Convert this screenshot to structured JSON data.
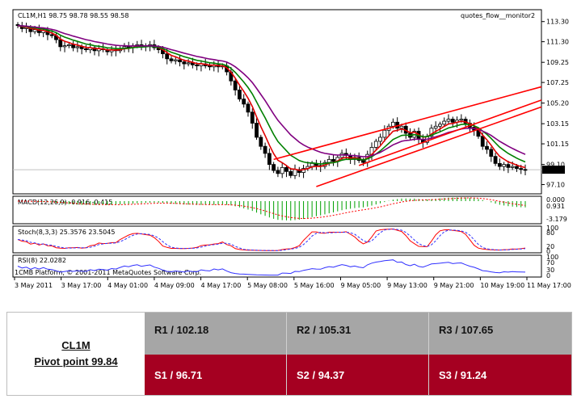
{
  "chart_header": {
    "symbol": "CL1M,H1",
    "ohlc": "98.75 98.78 98.55 98.58",
    "indicator_name": "quotes_flow__monitor2"
  },
  "price_axis": {
    "ticks": [
      "113.30",
      "111.30",
      "109.25",
      "107.25",
      "105.20",
      "103.15",
      "101.15",
      "99.10",
      "97.10"
    ],
    "current_price": "98.58"
  },
  "macd": {
    "label": "MACD(12,26,9) -0.916 -0.415",
    "ticks": [
      "0.000",
      "0.931",
      "-3.179"
    ]
  },
  "stoch": {
    "label": "Stoch(8,3,3) 25.3576 23.5045",
    "ticks": [
      "100",
      "80",
      "20",
      "0"
    ]
  },
  "rsi": {
    "label": "RSI(8) 22.0282",
    "ticks": [
      "100",
      "70",
      "30",
      "0"
    ],
    "copyright": "1CMB Platform, © 2001-2011 MetaQuotes Software Corp."
  },
  "time_axis": [
    "3 May 2011",
    "3 May 17:00",
    "4 May 01:00",
    "4 May 09:00",
    "4 May 17:00",
    "5 May 08:00",
    "5 May 16:00",
    "9 May 05:00",
    "9 May 13:00",
    "9 May 21:00",
    "10 May 19:00",
    "11 May 17:00"
  ],
  "colors": {
    "bull": "#000000",
    "bear": "#000000",
    "ema_fast": "#e00000",
    "ema_mid": "#008000",
    "ema_slow": "#800080",
    "channel": "#ff0000",
    "macd_hist": "#00a000",
    "signal": "#ff0000",
    "rsi": "#3030ff",
    "r_bg": "#a6a6a6",
    "s_bg": "#a50021"
  },
  "pivot": {
    "symbol": "CL1M",
    "pivot_label": "Pivot point 99.84",
    "resistance": [
      "R1 / 102.18",
      "R2  / 105.31",
      "R3 / 107.65"
    ],
    "support": [
      "S1 / 96.71",
      "S2 /  94.37",
      "S3 /  91.24"
    ]
  },
  "chart_data": {
    "type": "candlestick",
    "y_range": [
      96.5,
      114.0
    ],
    "close_series": [
      112.9,
      112.6,
      112.7,
      112.3,
      112.5,
      112.2,
      112.4,
      112.0,
      111.9,
      111.5,
      110.8,
      110.9,
      111.0,
      110.7,
      110.8,
      110.6,
      110.5,
      110.7,
      110.4,
      110.6,
      110.5,
      110.3,
      110.5,
      110.4,
      110.6,
      110.8,
      110.7,
      110.9,
      111.0,
      110.8,
      110.9,
      111.0,
      110.7,
      110.5,
      110.1,
      109.6,
      109.4,
      109.5,
      109.3,
      109.1,
      109.2,
      109.0,
      108.9,
      109.1,
      108.9,
      108.8,
      109.0,
      108.8,
      108.9,
      108.3,
      107.4,
      106.5,
      105.6,
      105.1,
      104.3,
      103.2,
      101.8,
      100.9,
      100.2,
      99.1,
      98.5,
      98.2,
      98.8,
      98.4,
      98.0,
      98.6,
      98.3,
      98.7,
      98.9,
      99.2,
      99.0,
      98.9,
      99.3,
      99.6,
      99.4,
      99.8,
      100.2,
      100.0,
      99.6,
      99.8,
      99.5,
      99.3,
      100.1,
      100.8,
      101.4,
      101.8,
      102.5,
      102.9,
      103.3,
      102.7,
      102.9,
      102.2,
      101.8,
      102.4,
      101.6,
      101.3,
      101.9,
      102.7,
      102.9,
      103.1,
      103.4,
      103.6,
      103.3,
      103.5,
      103.6,
      103.2,
      102.8,
      102.5,
      101.9,
      100.9,
      100.6,
      99.9,
      99.2,
      98.9,
      99.1,
      98.8,
      98.9,
      98.7,
      98.6,
      98.58
    ]
  }
}
